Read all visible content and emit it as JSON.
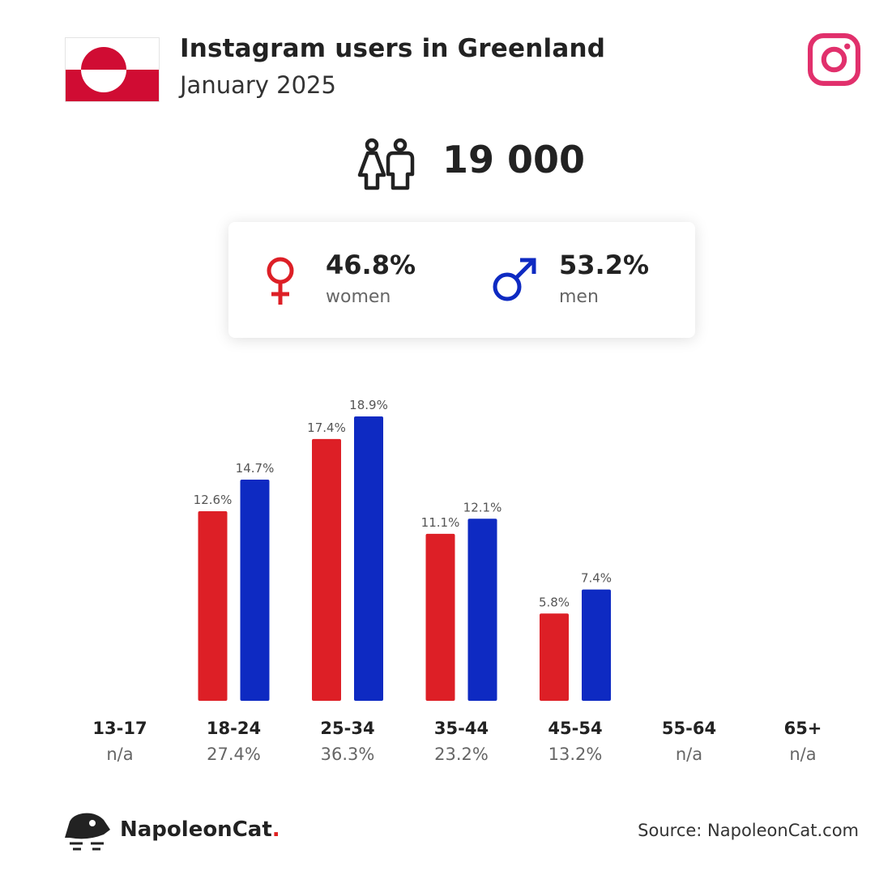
{
  "header": {
    "title": "Instagram users in Greenland",
    "subtitle": "January 2025"
  },
  "total_users": "19 000",
  "gender": {
    "women_pct": "46.8%",
    "women_label": "women",
    "men_pct": "53.2%",
    "men_label": "men"
  },
  "colors": {
    "women": "#dd1f26",
    "men": "#0e2ac2",
    "instagram": "#e1306c",
    "flag_red": "#d00c33"
  },
  "footer": {
    "brand_name": "NapoleonCat",
    "brand_dot": ".",
    "source": "Source: NapoleonCat.com"
  },
  "chart_data": {
    "type": "bar",
    "categories": [
      "13-17",
      "18-24",
      "25-34",
      "35-44",
      "45-54",
      "55-64",
      "65+"
    ],
    "category_totals": [
      "n/a",
      "27.4%",
      "36.3%",
      "23.2%",
      "13.2%",
      "n/a",
      "n/a"
    ],
    "series": [
      {
        "values": [
          null,
          12.6,
          17.4,
          11.1,
          5.8,
          null,
          null
        ],
        "color": "#dd1f26"
      },
      {
        "values": [
          null,
          14.7,
          18.9,
          12.1,
          7.4,
          null,
          null
        ],
        "color": "#0e2ac2"
      }
    ],
    "ylim": [
      0,
      18.9
    ],
    "grid": false
  }
}
